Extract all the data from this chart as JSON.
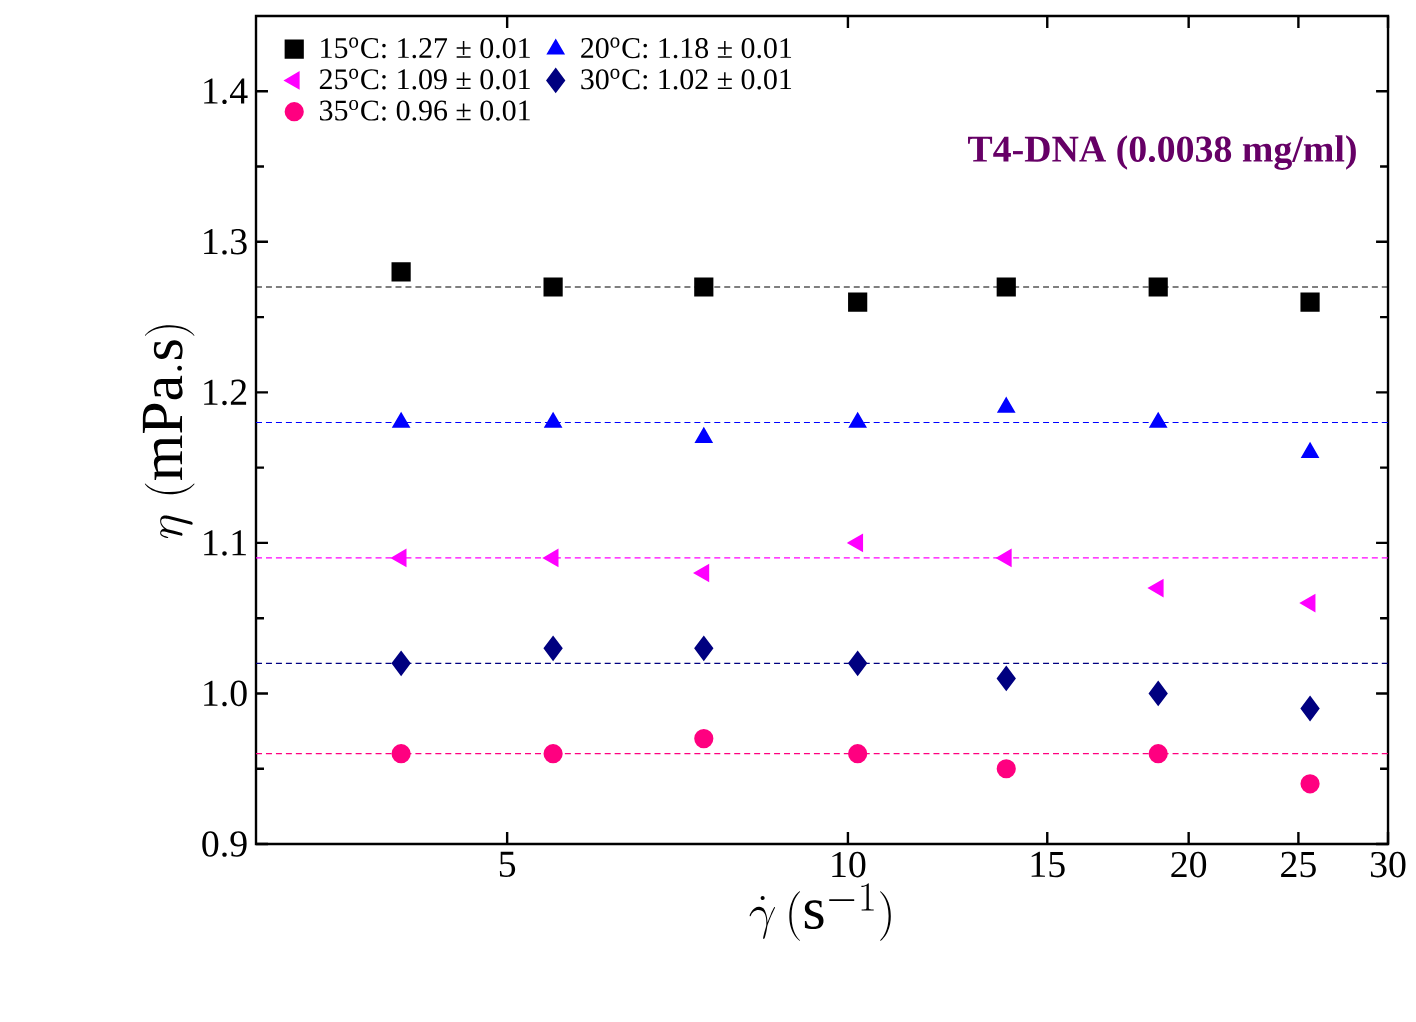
{
  "chart_data": {
    "type": "scatter",
    "xlabel": "\\dot{\\gamma}\\,(\\mathrm{s}^{-1})",
    "ylabel": "\\eta\\ (\\mathrm{mPa.s})",
    "log": "x",
    "xlim": [
      3,
      30
    ],
    "xticks": [
      5,
      10,
      15,
      20,
      25,
      30
    ],
    "ylim": [
      0.9,
      1.45
    ],
    "yticks": [
      0.9,
      {
        "value": 1.0,
        "label": "1.0"
      },
      1.1,
      1.2,
      1.3,
      1.4
    ],
    "x": [
      4.03,
      5.49,
      7.46,
      10.2,
      13.8,
      18.8,
      25.6
    ],
    "legend": "top left",
    "annotations": [
      "T4-DNA (0.0038 mg/ml)"
    ],
    "series": [
      {
        "name": "15$^{o}$C: 1.27 ± 0.01",
        "color": "#000000",
        "marker": "square",
        "values": [
          1.28,
          1.27,
          1.27,
          1.26,
          1.27,
          1.27,
          1.26
        ]
      },
      {
        "name": "20$^{o}$C: 1.18 ± 0.01",
        "color": "#0000ff",
        "marker": "triangle",
        "values": [
          1.18,
          1.18,
          1.17,
          1.18,
          1.19,
          1.18,
          1.16
        ]
      },
      {
        "name": "25$^{o}$C: 1.09 ± 0.01",
        "color": "#ff00ff",
        "marker": "triangle-left",
        "values": [
          1.09,
          1.09,
          1.08,
          1.1,
          1.09,
          1.07,
          1.06
        ]
      },
      {
        "name": "30$^{o}$C: 1.02 ± 0.01",
        "color": "#000080",
        "marker": "diamond",
        "values": [
          1.02,
          1.03,
          1.03,
          1.02,
          1.01,
          1.0,
          0.99
        ]
      },
      {
        "name": "35$^{o}$C: 0.96 ± 0.01",
        "color": "#ff0080",
        "marker": "circle",
        "values": [
          0.96,
          0.96,
          0.97,
          0.96,
          0.95,
          0.96,
          0.94
        ]
      }
    ],
    "ref_lines": [
      {
        "axis": "y",
        "value": 1.27,
        "color": "#000000",
        "line_style": "dashed"
      },
      {
        "axis": "y",
        "value": 1.18,
        "color": "#0000ff",
        "line_style": "dashed"
      },
      {
        "axis": "y",
        "value": 1.09,
        "color": "#ff00ff",
        "line_style": "dashed"
      },
      {
        "axis": "y",
        "value": 1.02,
        "color": "#000080",
        "line_style": "dashed"
      },
      {
        "axis": "y",
        "value": 0.96,
        "color": "#ff0080",
        "line_style": "dashed"
      }
    ]
  }
}
